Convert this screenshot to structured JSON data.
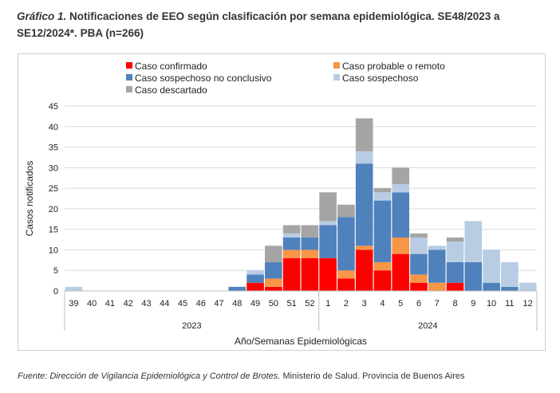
{
  "title": {
    "lead": "Gráfico 1.",
    "text": "Notificaciones de EEO según clasificación por semana epidemiológica. SE48/2023 a SE12/2024*. PBA (n=266)"
  },
  "footer": {
    "source": "Fuente: Dirección de Vigilancia Epidemiológica y Control de Brotes.",
    "org": "Ministerio de Salud. Provincia de Buenos Aires"
  },
  "chart_data": {
    "type": "bar",
    "stacked": true,
    "categories": [
      "39",
      "40",
      "41",
      "42",
      "43",
      "44",
      "45",
      "46",
      "47",
      "48",
      "49",
      "50",
      "51",
      "52",
      "1",
      "2",
      "3",
      "4",
      "5",
      "6",
      "7",
      "8",
      "9",
      "10",
      "11",
      "12"
    ],
    "groups": [
      {
        "label": "2023",
        "from": 0,
        "to": 13
      },
      {
        "label": "2024",
        "from": 14,
        "to": 25
      }
    ],
    "xlabel": "Año/Semanas Epidemiológicas",
    "ylabel": "Casos notificados",
    "ylim": [
      0,
      45
    ],
    "yticks": [
      0,
      5,
      10,
      15,
      20,
      25,
      30,
      35,
      40,
      45
    ],
    "grid": true,
    "legend_position": "top",
    "series": [
      {
        "name": "Caso confirmado",
        "color": "#ff0000",
        "values": [
          0,
          0,
          0,
          0,
          0,
          0,
          0,
          0,
          0,
          0,
          2,
          1,
          8,
          8,
          8,
          3,
          10,
          5,
          9,
          2,
          0,
          2,
          0,
          0,
          0,
          0
        ]
      },
      {
        "name": "Caso probable o remoto",
        "color": "#f79646",
        "values": [
          0,
          0,
          0,
          0,
          0,
          0,
          0,
          0,
          0,
          0,
          0,
          2,
          2,
          2,
          0,
          2,
          1,
          2,
          4,
          2,
          2,
          0,
          0,
          0,
          0,
          0
        ]
      },
      {
        "name": "Caso sospechoso no conclusivo",
        "color": "#4f81bd",
        "values": [
          0,
          0,
          0,
          0,
          0,
          0,
          0,
          0,
          0,
          1,
          2,
          4,
          3,
          3,
          8,
          13,
          20,
          15,
          11,
          5,
          8,
          5,
          7,
          2,
          1,
          0
        ]
      },
      {
        "name": "Caso sospechoso",
        "color": "#b8cce4",
        "values": [
          1,
          0,
          0,
          0,
          0,
          0,
          0,
          0,
          0,
          0,
          1,
          0,
          1,
          0,
          1,
          0,
          3,
          2,
          2,
          4,
          1,
          5,
          10,
          8,
          6,
          2
        ]
      },
      {
        "name": "Caso descartado",
        "color": "#a5a5a5",
        "values": [
          0,
          0,
          0,
          0,
          0,
          0,
          0,
          0,
          0,
          0,
          0,
          4,
          2,
          3,
          7,
          3,
          8,
          1,
          4,
          1,
          0,
          1,
          0,
          0,
          0,
          0
        ]
      }
    ]
  }
}
